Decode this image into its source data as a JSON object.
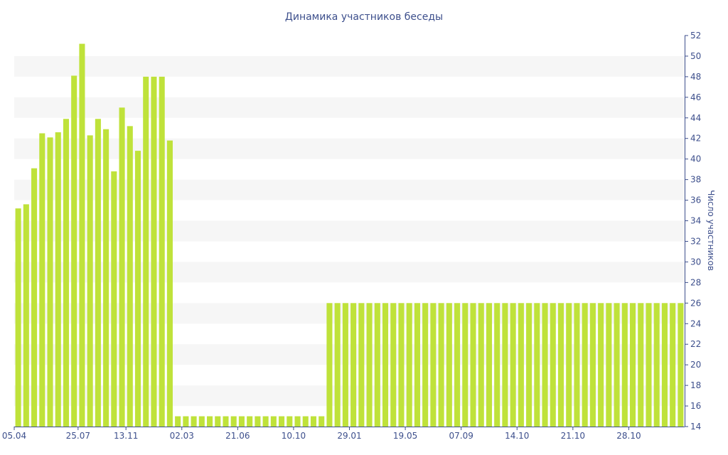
{
  "chart_data": {
    "type": "bar",
    "title": "Динамика участников беседы",
    "ylabel": "Число участников",
    "ylim": [
      14,
      52
    ],
    "y_ticks": [
      14,
      16,
      18,
      20,
      22,
      24,
      26,
      28,
      30,
      32,
      34,
      36,
      38,
      40,
      42,
      44,
      46,
      48,
      50,
      52
    ],
    "y_axis_side": "right",
    "x_tick_labels": [
      {
        "index": 0,
        "label": "05.04"
      },
      {
        "index": 8,
        "label": "25.07"
      },
      {
        "index": 14,
        "label": "13.11"
      },
      {
        "index": 21,
        "label": "02.03"
      },
      {
        "index": 28,
        "label": "21.06"
      },
      {
        "index": 35,
        "label": "10.10"
      },
      {
        "index": 42,
        "label": "29.01"
      },
      {
        "index": 49,
        "label": "19.05"
      },
      {
        "index": 56,
        "label": "07.09"
      },
      {
        "index": 63,
        "label": "14.10"
      },
      {
        "index": 70,
        "label": "21.10"
      },
      {
        "index": 77,
        "label": "28.10"
      }
    ],
    "bar_color": "#bfe23a",
    "grid_band_color": "#f6f6f6",
    "values": [
      35.2,
      35.6,
      39.1,
      42.5,
      42.1,
      42.6,
      43.9,
      48.1,
      51.2,
      42.3,
      43.9,
      42.9,
      38.8,
      45.0,
      43.2,
      40.8,
      48.0,
      48.0,
      48.0,
      41.8,
      15,
      15,
      15,
      15,
      15,
      15,
      15,
      15,
      15,
      15,
      15,
      15,
      15,
      15,
      15,
      15,
      15,
      15,
      15,
      26,
      26,
      26,
      26,
      26,
      26,
      26,
      26,
      26,
      26,
      26,
      26,
      26,
      26,
      26,
      26,
      26,
      26,
      26,
      26,
      26,
      26,
      26,
      26,
      26,
      26,
      26,
      26,
      26,
      26,
      26,
      26,
      26,
      26,
      26,
      26,
      26,
      26,
      26,
      26,
      26,
      26,
      26,
      26,
      26
    ]
  }
}
